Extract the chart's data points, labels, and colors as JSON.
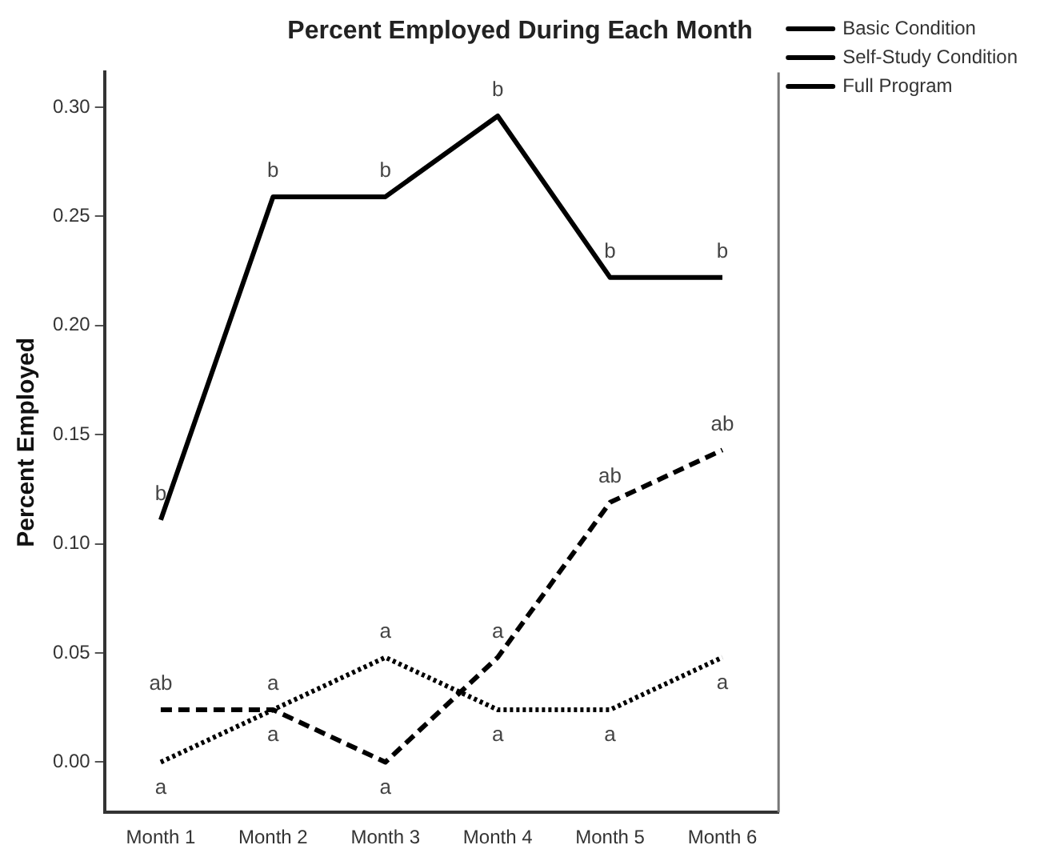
{
  "chart_data": {
    "type": "line",
    "title": "Percent Employed During Each Month",
    "ylabel": "Percent Employed",
    "categories": [
      "Month 1",
      "Month 2",
      "Month 3",
      "Month 4",
      "Month 5",
      "Month 6"
    ],
    "series": [
      {
        "name": "Basic Condition",
        "color": "#000000",
        "line_style": "dashed",
        "values": [
          0.024,
          0.024,
          0.0,
          0.048,
          0.119,
          0.143
        ]
      },
      {
        "name": "Self-Study Condition",
        "color": "#000000",
        "line_style": "dotted",
        "values": [
          0.0,
          0.024,
          0.048,
          0.024,
          0.024,
          0.048
        ]
      },
      {
        "name": "Full Program",
        "color": "#000000",
        "line_style": "solid",
        "values": [
          0.111,
          0.259,
          0.259,
          0.296,
          0.222,
          0.222
        ]
      }
    ],
    "ylim": [
      -0.023,
      0.316
    ],
    "yticks": [
      {
        "value": 0,
        "label": "0.00"
      },
      {
        "value": 0.05,
        "label": "0.05"
      },
      {
        "value": 0.1,
        "label": "0.10"
      },
      {
        "value": 0.15,
        "label": "0.15"
      },
      {
        "value": 0.2,
        "label": "0.20"
      },
      {
        "value": 0.25,
        "label": "0.25"
      },
      {
        "value": 0.3,
        "label": "0.30"
      }
    ],
    "grid": false,
    "legend": "top right",
    "marker": "none",
    "annotations": [
      {
        "text": "b",
        "x": "Month 1",
        "y": 0.111
      },
      {
        "text": "b",
        "x": "Month 2",
        "y": 0.259
      },
      {
        "text": "b",
        "x": "Month 3",
        "y": 0.259
      },
      {
        "text": "b",
        "x": "Month 4",
        "y": 0.296
      },
      {
        "text": "b",
        "x": "Month 5",
        "y": 0.222
      },
      {
        "text": "b",
        "x": "Month 6",
        "y": 0.222
      },
      {
        "text": "ab",
        "x": "Month 1",
        "y": 0.024
      },
      {
        "text": "a",
        "x": "Month 2",
        "y": 0.024
      },
      {
        "text": "a",
        "x": "Month 3",
        "y": 0.0
      },
      {
        "text": "a",
        "x": "Month 4",
        "y": 0.048
      },
      {
        "text": "ab",
        "x": "Month 5",
        "y": 0.119
      },
      {
        "text": "ab",
        "x": "Month 6",
        "y": 0.143
      },
      {
        "text": "a",
        "x": "Month 1",
        "y": 0.0
      },
      {
        "text": "a",
        "x": "Month 2",
        "y": 0.024
      },
      {
        "text": "a",
        "x": "Month 3",
        "y": 0.048
      },
      {
        "text": "a",
        "x": "Month 4",
        "y": 0.024
      },
      {
        "text": "a",
        "x": "Month 5",
        "y": 0.024
      },
      {
        "text": "a",
        "x": "Month 6",
        "y": 0.048
      }
    ]
  }
}
